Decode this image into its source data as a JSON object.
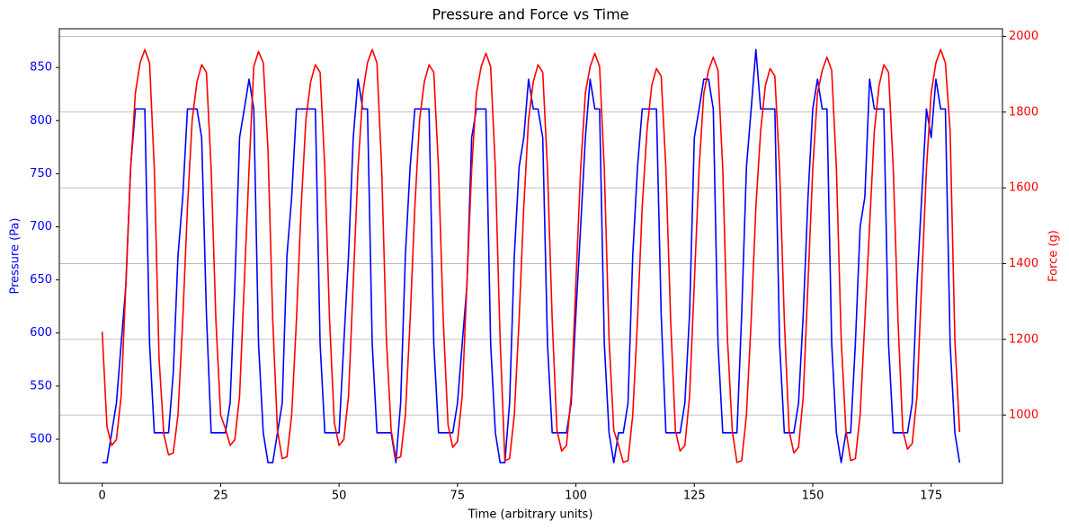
{
  "chart_data": {
    "type": "line",
    "title": "Pressure and Force vs Time",
    "x_label": "Time (arbitrary units)",
    "y_label": "Pressure (Pa)",
    "y2_label": "Force (g)",
    "x": [
      0,
      1,
      2,
      3,
      4,
      5,
      6,
      7,
      8,
      9,
      10,
      11,
      12,
      13,
      14,
      15,
      16,
      17,
      18,
      19,
      20,
      21,
      22,
      23,
      24,
      25,
      26,
      27,
      28,
      29,
      30,
      31,
      32,
      33,
      34,
      35,
      36,
      37,
      38,
      39,
      40,
      41,
      42,
      43,
      44,
      45,
      46,
      47,
      48,
      49,
      50,
      51,
      52,
      53,
      54,
      55,
      56,
      57,
      58,
      59,
      60,
      61,
      62,
      63,
      64,
      65,
      66,
      67,
      68,
      69,
      70,
      71,
      72,
      73,
      74,
      75,
      76,
      77,
      78,
      79,
      80,
      81,
      82,
      83,
      84,
      85,
      86,
      87,
      88,
      89,
      90,
      91,
      92,
      93,
      94,
      95,
      96,
      97,
      98,
      99,
      100,
      101,
      102,
      103,
      104,
      105,
      106,
      107,
      108,
      109,
      110,
      111,
      112,
      113,
      114,
      115,
      116,
      117,
      118,
      119,
      120,
      121,
      122,
      123,
      124,
      125,
      126,
      127,
      128,
      129,
      130,
      131,
      132,
      133,
      134,
      135,
      136,
      137,
      138,
      139,
      140,
      141,
      142,
      143,
      144,
      145,
      146,
      147,
      148,
      149,
      150,
      151,
      152,
      153,
      154,
      155,
      156,
      157,
      158,
      159,
      160,
      161,
      162,
      163,
      164,
      165,
      166,
      167,
      168,
      169,
      170,
      171,
      172,
      173,
      174,
      175,
      176,
      177,
      178,
      179,
      180,
      181
    ],
    "series": [
      {
        "name": "Pressure (Pa)",
        "color": "#0000ff",
        "axis": "y",
        "values": [
          478,
          478,
          506,
          534,
          590,
          645,
          756,
          811,
          811,
          811,
          590,
          506,
          506,
          506,
          506,
          562,
          673,
          728,
          811,
          811,
          811,
          784,
          618,
          506,
          506,
          506,
          506,
          534,
          645,
          784,
          811,
          839,
          811,
          590,
          506,
          478,
          478,
          506,
          534,
          673,
          728,
          811,
          811,
          811,
          811,
          811,
          590,
          506,
          506,
          506,
          506,
          590,
          673,
          784,
          839,
          811,
          811,
          590,
          506,
          506,
          506,
          506,
          478,
          534,
          673,
          756,
          811,
          811,
          811,
          811,
          590,
          506,
          506,
          506,
          506,
          534,
          590,
          645,
          784,
          811,
          811,
          811,
          590,
          506,
          478,
          478,
          534,
          673,
          756,
          784,
          839,
          811,
          811,
          784,
          590,
          506,
          506,
          506,
          506,
          534,
          618,
          700,
          784,
          839,
          811,
          811,
          590,
          506,
          478,
          506,
          506,
          534,
          673,
          756,
          811,
          811,
          811,
          811,
          618,
          506,
          506,
          506,
          506,
          534,
          618,
          784,
          811,
          839,
          839,
          811,
          590,
          506,
          506,
          506,
          506,
          618,
          756,
          811,
          867,
          811,
          811,
          811,
          811,
          590,
          506,
          506,
          506,
          534,
          618,
          728,
          811,
          839,
          811,
          811,
          590,
          506,
          478,
          506,
          506,
          590,
          700,
          728,
          839,
          811,
          811,
          811,
          590,
          506,
          506,
          506,
          506,
          534,
          645,
          728,
          811,
          784,
          839,
          811,
          811,
          590,
          506,
          478
        ]
      },
      {
        "name": "Force (g)",
        "color": "#ff0000",
        "axis": "y2",
        "values": [
          1220,
          970,
          920,
          935,
          1050,
          1350,
          1650,
          1850,
          1930,
          1965,
          1930,
          1650,
          1150,
          950,
          895,
          900,
          1000,
          1250,
          1550,
          1780,
          1880,
          1925,
          1905,
          1650,
          1250,
          1000,
          965,
          920,
          935,
          1050,
          1350,
          1650,
          1920,
          1960,
          1930,
          1700,
          1250,
          960,
          885,
          890,
          1000,
          1250,
          1550,
          1780,
          1880,
          1925,
          1905,
          1650,
          1250,
          980,
          920,
          935,
          1050,
          1350,
          1650,
          1850,
          1930,
          1965,
          1930,
          1650,
          1200,
          960,
          885,
          890,
          1000,
          1250,
          1550,
          1780,
          1880,
          1925,
          1905,
          1650,
          1250,
          975,
          915,
          930,
          1050,
          1350,
          1650,
          1850,
          1920,
          1955,
          1920,
          1650,
          1200,
          880,
          885,
          1000,
          1250,
          1550,
          1780,
          1880,
          1925,
          1905,
          1650,
          1250,
          960,
          905,
          920,
          1050,
          1350,
          1650,
          1850,
          1920,
          1955,
          1920,
          1650,
          1200,
          960,
          920,
          875,
          880,
          1000,
          1250,
          1550,
          1750,
          1870,
          1915,
          1895,
          1650,
          1250,
          960,
          905,
          920,
          1050,
          1350,
          1650,
          1850,
          1910,
          1945,
          1910,
          1650,
          1200,
          960,
          875,
          880,
          1000,
          1250,
          1550,
          1750,
          1870,
          1915,
          1895,
          1650,
          1250,
          960,
          900,
          915,
          1050,
          1350,
          1650,
          1850,
          1910,
          1945,
          1910,
          1650,
          1200,
          960,
          880,
          885,
          1000,
          1250,
          1500,
          1750,
          1870,
          1925,
          1905,
          1650,
          1250,
          960,
          910,
          925,
          1050,
          1350,
          1650,
          1850,
          1930,
          1965,
          1930,
          1750,
          1200,
          955
        ]
      }
    ],
    "xlim": [
      -9.05,
      190.05
    ],
    "xticks": [
      0,
      25,
      50,
      75,
      100,
      125,
      150,
      175
    ],
    "ylim": [
      458.5,
      886.5
    ],
    "yticks": [
      500,
      550,
      600,
      650,
      700,
      750,
      800,
      850
    ],
    "y2lim": [
      820,
      2020
    ],
    "y2ticks": [
      1000,
      1200,
      1400,
      1600,
      1800,
      2000
    ],
    "grid": "y2"
  }
}
